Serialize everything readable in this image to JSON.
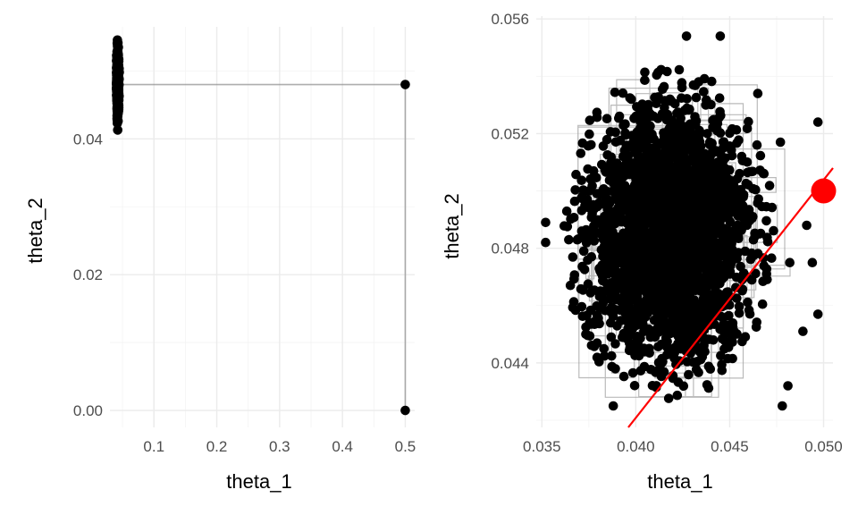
{
  "chart_data": [
    {
      "type": "scatter",
      "panel": "left",
      "xlabel": "theta_1",
      "ylabel": "theta_2",
      "xlim": [
        0.03,
        0.515
      ],
      "ylim": [
        -0.0025,
        0.0565
      ],
      "x_ticks": [
        0.1,
        0.2,
        0.3,
        0.4,
        0.5
      ],
      "x_tick_labels": [
        "0.1",
        "0.2",
        "0.3",
        "0.4",
        "0.5"
      ],
      "y_ticks": [
        0.0,
        0.02,
        0.04
      ],
      "y_tick_labels": [
        "0.00",
        "0.02",
        "0.04"
      ],
      "grid": true,
      "start_points": [
        {
          "x": 0.5,
          "y": 0.0
        },
        {
          "x": 0.5,
          "y": 0.048
        }
      ],
      "path_line": [
        {
          "x": 0.5,
          "y": 0.0
        },
        {
          "x": 0.5,
          "y": 0.048
        },
        {
          "x": 0.043,
          "y": 0.048
        }
      ],
      "cluster": {
        "x_center": 0.0425,
        "x_sd": 0.0015,
        "y_center": 0.0482,
        "y_sd": 0.0021,
        "y_range": [
          0.041,
          0.0555
        ]
      }
    },
    {
      "type": "scatter",
      "panel": "right",
      "xlabel": "theta_1",
      "ylabel": "theta_2",
      "xlim": [
        0.0347,
        0.0505
      ],
      "ylim": [
        0.04175,
        0.0561
      ],
      "x_ticks": [
        0.035,
        0.04,
        0.045,
        0.05
      ],
      "x_tick_labels": [
        "0.035",
        "0.040",
        "0.045",
        "0.050"
      ],
      "y_ticks": [
        0.044,
        0.048,
        0.052,
        0.056
      ],
      "y_tick_labels": [
        "0.044",
        "0.048",
        "0.052",
        "0.056"
      ],
      "grid": true,
      "cluster": {
        "x_center": 0.0418,
        "x_sd": 0.0022,
        "y_center": 0.0485,
        "y_sd": 0.0022
      },
      "outliers": [
        {
          "x": 0.0352,
          "y": 0.0489
        },
        {
          "x": 0.0352,
          "y": 0.0482
        },
        {
          "x": 0.0388,
          "y": 0.0425
        },
        {
          "x": 0.0478,
          "y": 0.0425
        },
        {
          "x": 0.0427,
          "y": 0.0554
        },
        {
          "x": 0.0445,
          "y": 0.0554
        },
        {
          "x": 0.0497,
          "y": 0.0524
        },
        {
          "x": 0.0497,
          "y": 0.0457
        },
        {
          "x": 0.0482,
          "y": 0.0475
        },
        {
          "x": 0.0489,
          "y": 0.0451
        },
        {
          "x": 0.0481,
          "y": 0.0432
        },
        {
          "x": 0.0465,
          "y": 0.0534
        },
        {
          "x": 0.0477,
          "y": 0.0517
        },
        {
          "x": 0.0491,
          "y": 0.0488
        },
        {
          "x": 0.0494,
          "y": 0.0475
        }
      ],
      "highlight_point": {
        "x": 0.05,
        "y": 0.05,
        "color": "#ff0000"
      },
      "reference_line": {
        "points": [
          {
            "x": 0.0396,
            "y": 0.04175
          },
          {
            "x": 0.0505,
            "y": 0.0508
          }
        ],
        "color": "#ff0000"
      }
    }
  ],
  "colors": {
    "points": "#000000",
    "path": "#8c8c8c",
    "highlight": "#ff0000"
  }
}
